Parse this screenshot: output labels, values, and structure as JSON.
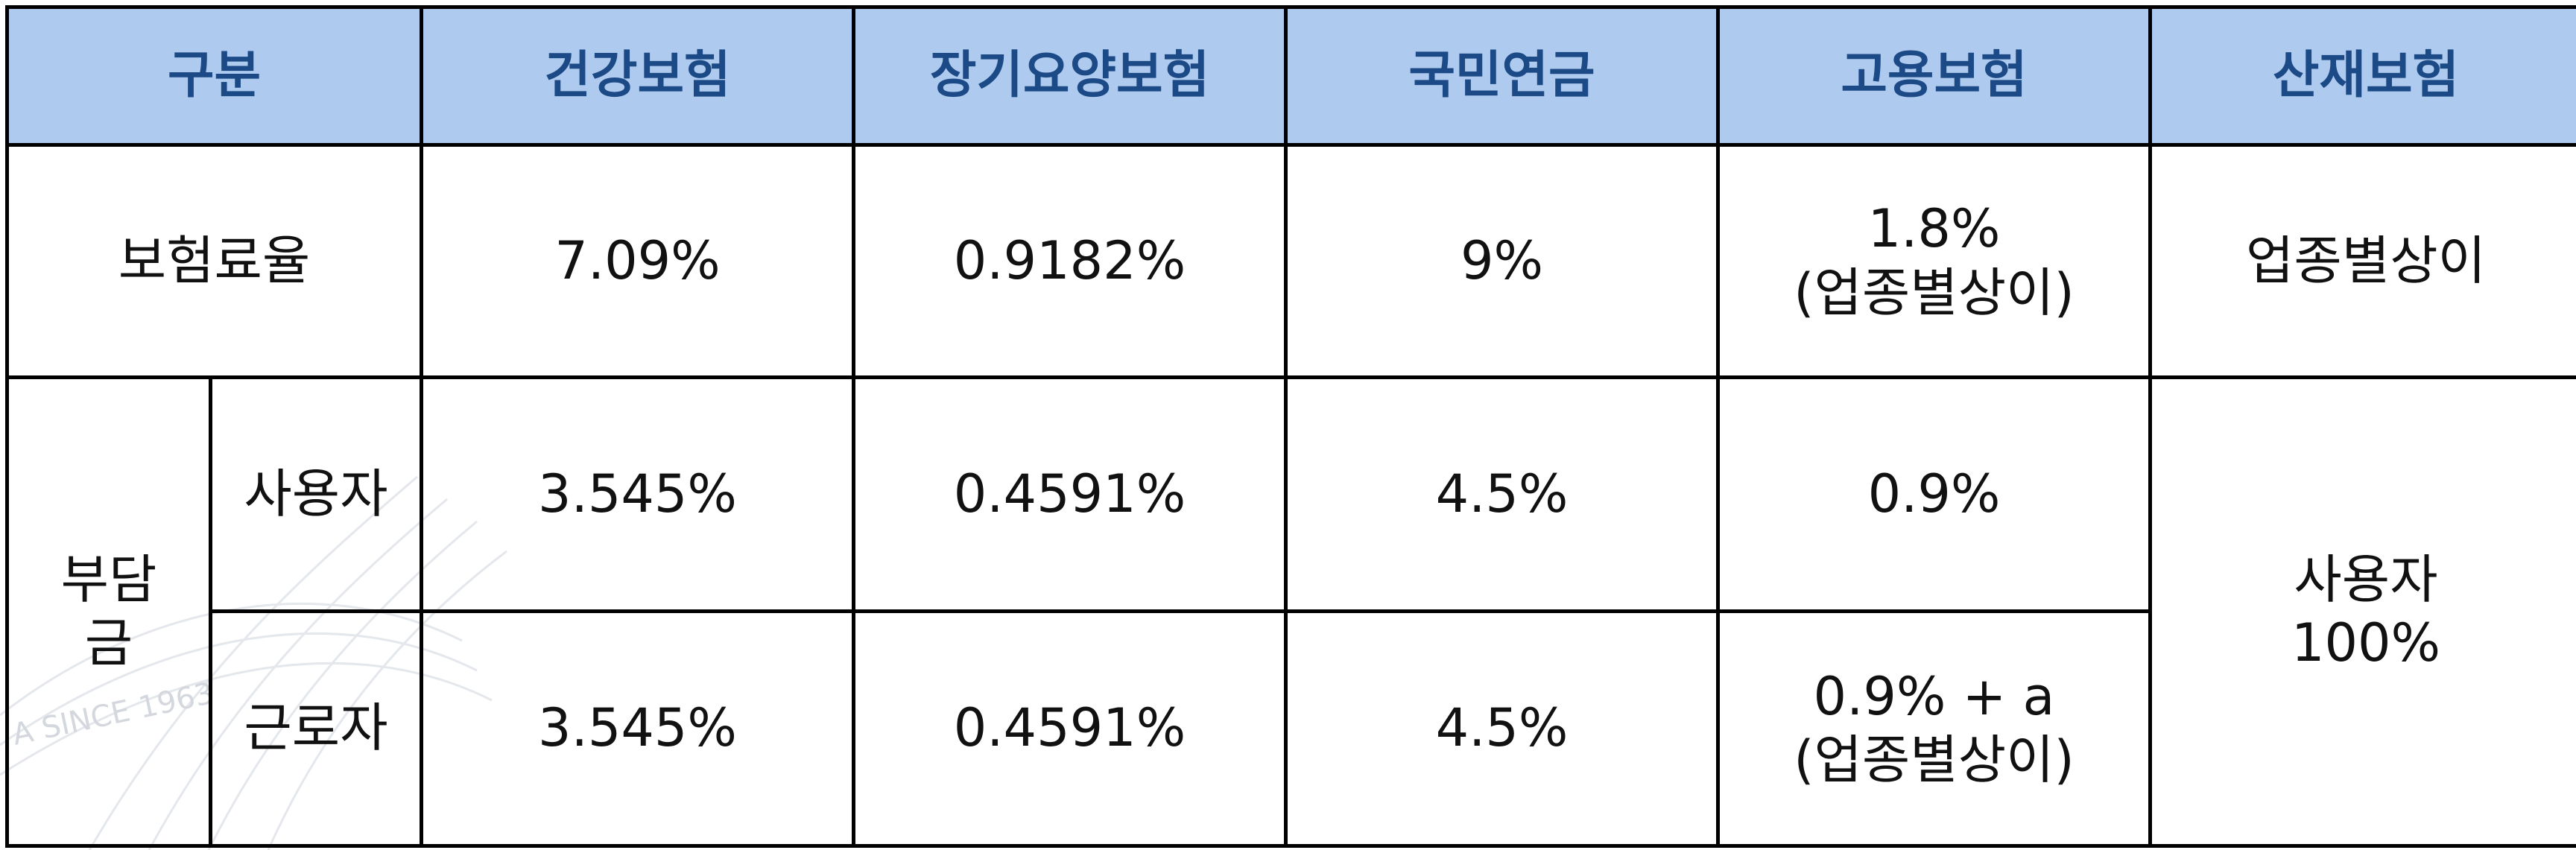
{
  "header": {
    "category": "구분",
    "health": "건강보험",
    "longterm_care": "장기요양보험",
    "pension": "국민연금",
    "employment": "고용보험",
    "industrial": "산재보험"
  },
  "rate_row": {
    "label": "보험료율",
    "health": "7.09%",
    "longterm_care": "0.9182%",
    "pension": "9%",
    "employment_line1": "1.8%",
    "employment_line2": "(업종별상이)",
    "industrial": "업종별상이"
  },
  "burden": {
    "label_line1": "부담",
    "label_line2": "금",
    "employer": {
      "label": "사용자",
      "health": "3.545%",
      "longterm_care": "0.4591%",
      "pension": "4.5%",
      "employment": "0.9%"
    },
    "worker": {
      "label": "근로자",
      "health": "3.545%",
      "longterm_care": "0.4591%",
      "pension": "4.5%",
      "employment_line1": "0.9% + a",
      "employment_line2": "(업종별상이)"
    },
    "industrial_line1": "사용자",
    "industrial_line2": "100%"
  },
  "watermark_text": "A SINCE 1963"
}
